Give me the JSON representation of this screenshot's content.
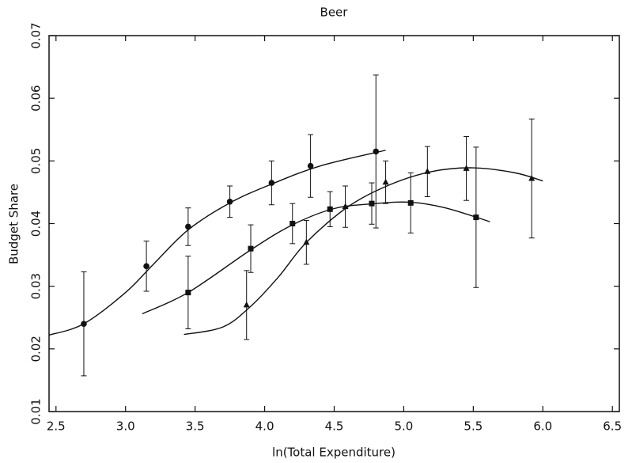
{
  "chart_data": {
    "type": "errorbar",
    "title": "Beer",
    "xlabel": "ln(Total Expenditure)",
    "ylabel": "Budget Share",
    "xlim": [
      2.45,
      6.55
    ],
    "ylim": [
      0.01,
      0.07
    ],
    "xticks": [
      2.5,
      {
        "value": 3,
        "label": "3.0"
      },
      3.5,
      {
        "value": 4,
        "label": "4.0"
      },
      4.5,
      {
        "value": 5,
        "label": "5.0"
      },
      5.5,
      {
        "value": 6,
        "label": "6.0"
      },
      6.5
    ],
    "yticks": [
      0.01,
      0.02,
      0.03,
      0.04,
      0.05,
      0.06,
      0.07
    ],
    "color": "#111111",
    "series": [
      {
        "marker": "circle",
        "x": [
          2.7,
          3.15,
          3.45,
          3.75,
          4.05,
          4.33,
          4.8
        ],
        "values": [
          0.024,
          0.0332,
          0.0395,
          0.0435,
          0.0465,
          0.0492,
          0.0515
        ],
        "errors": [
          0.0083,
          0.004,
          0.003,
          0.0025,
          0.0035,
          0.005,
          0.0122
        ],
        "fit_x": [
          2.45,
          2.7,
          3.0,
          3.2,
          3.45,
          3.75,
          4.05,
          4.4,
          4.87
        ],
        "fit_values": [
          0.0222,
          0.024,
          0.029,
          0.0335,
          0.039,
          0.0433,
          0.0463,
          0.0492,
          0.0517
        ]
      },
      {
        "marker": "square",
        "x": [
          3.45,
          3.9,
          4.2,
          4.47,
          4.77,
          5.05,
          5.52
        ],
        "values": [
          0.029,
          0.036,
          0.04,
          0.0423,
          0.0432,
          0.0433,
          0.041
        ],
        "errors": [
          0.0058,
          0.0038,
          0.0032,
          0.0028,
          0.0033,
          0.0048,
          0.0112
        ],
        "fit_x": [
          3.12,
          3.45,
          3.9,
          4.2,
          4.5,
          4.8,
          5.05,
          5.3,
          5.62
        ],
        "fit_values": [
          0.0256,
          0.029,
          0.0358,
          0.0398,
          0.0424,
          0.0432,
          0.0434,
          0.0425,
          0.0403
        ]
      },
      {
        "marker": "triangle",
        "x": [
          3.87,
          4.3,
          4.58,
          4.87,
          5.17,
          5.45,
          5.92
        ],
        "values": [
          0.027,
          0.037,
          0.0427,
          0.0466,
          0.0483,
          0.0488,
          0.0472
        ],
        "errors": [
          0.0055,
          0.0035,
          0.0033,
          0.0034,
          0.004,
          0.0051,
          0.0095
        ],
        "fit_x": [
          3.42,
          3.7,
          3.9,
          4.1,
          4.3,
          4.6,
          4.9,
          5.2,
          5.5,
          5.8,
          6.0
        ],
        "fit_values": [
          0.0223,
          0.0235,
          0.0268,
          0.0315,
          0.037,
          0.0427,
          0.0462,
          0.0483,
          0.0489,
          0.0481,
          0.0468
        ]
      }
    ]
  }
}
